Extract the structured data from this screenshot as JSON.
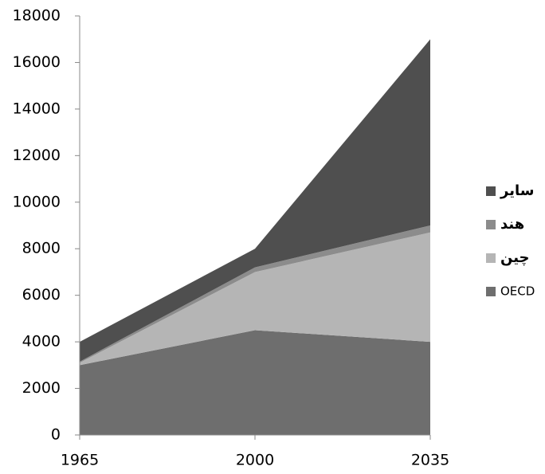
{
  "chart_data": {
    "type": "stacked-area",
    "x": [
      1965,
      2000,
      2035
    ],
    "xlim": [
      1965,
      2035
    ],
    "xticks": [
      1965,
      2000,
      2035
    ],
    "ylim": [
      0,
      18000
    ],
    "yticks": [
      0,
      2000,
      4000,
      6000,
      8000,
      10000,
      12000,
      14000,
      16000,
      18000
    ],
    "grid": false,
    "legend": "right",
    "series": [
      {
        "name": "OECD",
        "color": "#6e6e6e",
        "values": [
          3000,
          4500,
          4000
        ]
      },
      {
        "name": "چین",
        "color": "#b5b5b5",
        "values": [
          100,
          2500,
          4700
        ]
      },
      {
        "name": "هند",
        "color": "#8c8c8c",
        "values": [
          50,
          200,
          300
        ]
      },
      {
        "name": "سایر",
        "color": "#4f4f4f",
        "values": [
          850,
          800,
          8000
        ]
      }
    ]
  }
}
